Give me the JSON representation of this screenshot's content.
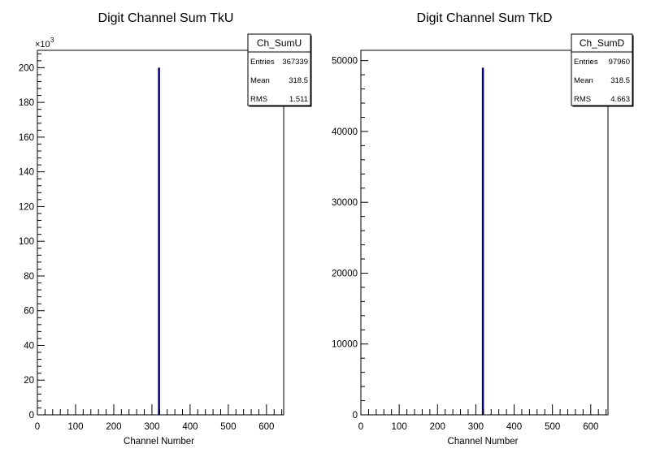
{
  "chart_data": [
    {
      "type": "bar",
      "title": "Digit Channel Sum TkU",
      "xlabel": "Channel Number",
      "ylabel": "",
      "xlim": [
        0,
        645
      ],
      "ylim": [
        0,
        210
      ],
      "y_multiplier_label": "×10",
      "y_multiplier_exp": "3",
      "xticks": [
        "0",
        "100",
        "200",
        "300",
        "400",
        "500",
        "600"
      ],
      "yticks": [
        "0",
        "20",
        "40",
        "60",
        "80",
        "100",
        "120",
        "140",
        "160",
        "180",
        "200"
      ],
      "bins": [
        {
          "x": 318.5,
          "value": 200
        }
      ],
      "stats": {
        "name": "Ch_SumU",
        "rows": [
          {
            "label": "Entries",
            "value": "367339"
          },
          {
            "label": "Mean",
            "value": "318.5"
          },
          {
            "label": "RMS",
            "value": "1.511"
          }
        ]
      },
      "color": "#000080"
    },
    {
      "type": "bar",
      "title": "Digit Channel Sum TkD",
      "xlabel": "Channel Number",
      "ylabel": "",
      "xlim": [
        0,
        645
      ],
      "ylim": [
        0,
        51450
      ],
      "xticks": [
        "0",
        "100",
        "200",
        "300",
        "400",
        "500",
        "600"
      ],
      "yticks": [
        "0",
        "10000",
        "20000",
        "30000",
        "40000",
        "50000"
      ],
      "bins": [
        {
          "x": 318.5,
          "value": 49000
        }
      ],
      "stats": {
        "name": "Ch_SumD",
        "rows": [
          {
            "label": "Entries",
            "value": "97960"
          },
          {
            "label": "Mean",
            "value": "318.5"
          },
          {
            "label": "RMS",
            "value": "4.663"
          }
        ]
      },
      "color": "#000080"
    }
  ]
}
